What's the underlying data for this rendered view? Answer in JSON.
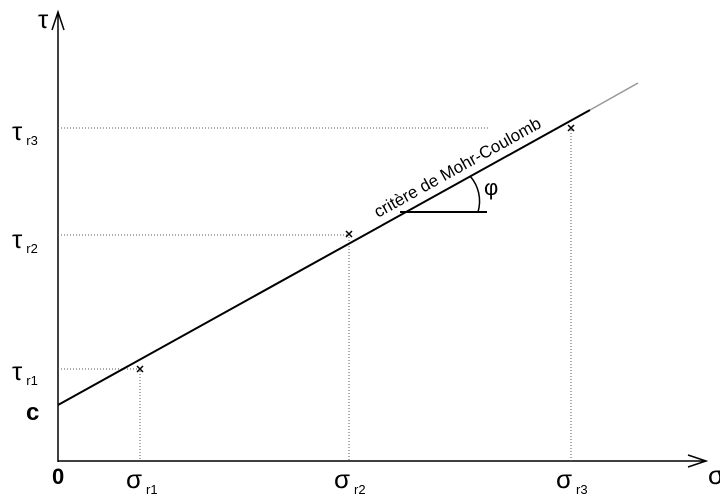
{
  "diagram": {
    "y_axis_label": "τ",
    "x_axis_label": "σ",
    "origin_label": "0",
    "intercept_label": "c",
    "line_label": "critère de Mohr-Coulomb",
    "angle_label": "φ",
    "tau_labels": [
      {
        "symbol": "τ",
        "sub": "r1"
      },
      {
        "symbol": "τ",
        "sub": "r2"
      },
      {
        "symbol": "τ",
        "sub": "r3"
      }
    ],
    "sigma_labels": [
      {
        "symbol": "σ",
        "sub": "r1"
      },
      {
        "symbol": "σ",
        "sub": "r2"
      },
      {
        "symbol": "σ",
        "sub": "r3"
      }
    ]
  }
}
